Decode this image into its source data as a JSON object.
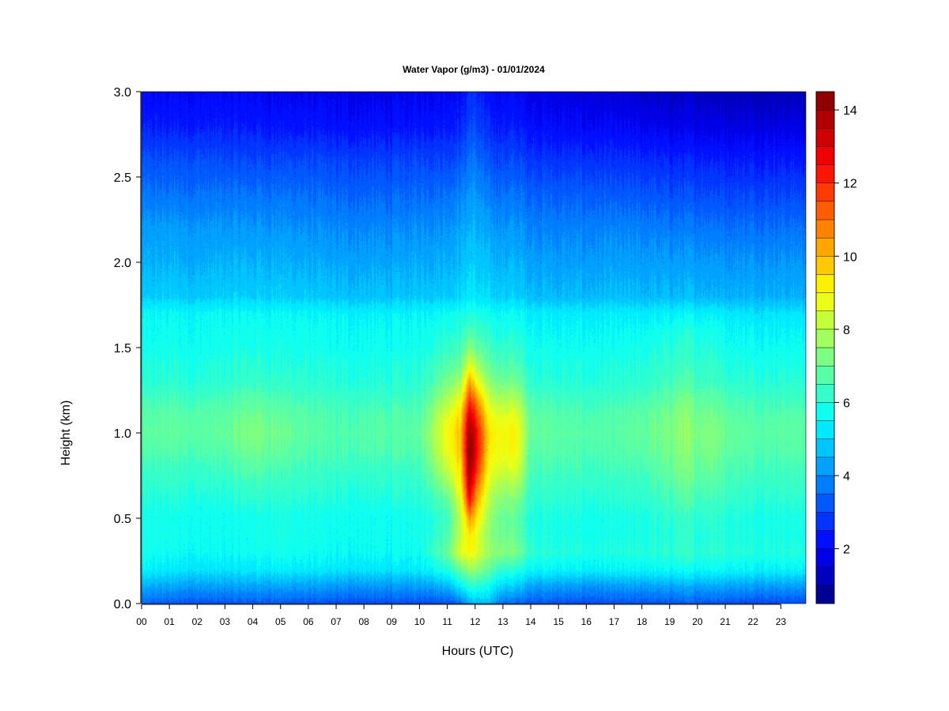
{
  "chart_data": {
    "type": "heatmap",
    "title": "Water Vapor (g/m3) - 01/01/2024",
    "xlabel": "Hours (UTC)",
    "ylabel": "Height (km)",
    "xlim": [
      0,
      23.9
    ],
    "ylim": [
      0.0,
      3.0
    ],
    "x_tick_labels": [
      "00",
      "01",
      "02",
      "03",
      "04",
      "05",
      "06",
      "07",
      "08",
      "09",
      "10",
      "11",
      "12",
      "13",
      "14",
      "15",
      "16",
      "17",
      "18",
      "19",
      "20",
      "21",
      "22",
      "23"
    ],
    "x_tick_values": [
      0,
      1,
      2,
      3,
      4,
      5,
      6,
      7,
      8,
      9,
      10,
      11,
      12,
      13,
      14,
      15,
      16,
      17,
      18,
      19,
      20,
      21,
      22,
      23
    ],
    "y_tick_labels": [
      "0.0",
      "0.5",
      "1.0",
      "1.5",
      "2.0",
      "2.5",
      "3.0"
    ],
    "y_tick_values": [
      0.0,
      0.5,
      1.0,
      1.5,
      2.0,
      2.5,
      3.0
    ],
    "colorbar": {
      "range": [
        0.5,
        14.5
      ],
      "level_step": 0.5,
      "tick_labels": [
        "2",
        "4",
        "6",
        "8",
        "10",
        "12",
        "14"
      ],
      "tick_values": [
        2,
        4,
        6,
        8,
        10,
        12,
        14
      ]
    },
    "height_km": [
      0.0,
      0.1,
      0.2,
      0.3,
      0.4,
      0.5,
      0.6,
      0.7,
      0.8,
      0.9,
      1.0,
      1.1,
      1.2,
      1.3,
      1.4,
      1.5,
      1.6,
      1.7,
      1.8,
      2.0,
      2.2,
      2.4,
      2.6,
      2.8,
      3.0
    ],
    "hours_utc": [
      0,
      1,
      2,
      3,
      4,
      5,
      6,
      7,
      8,
      9,
      10,
      11,
      11.5,
      11.8,
      12,
      12.5,
      13,
      13.5,
      14,
      15,
      16,
      17,
      18,
      19,
      19.5,
      20,
      20.5,
      21,
      22,
      23,
      23.9
    ],
    "values_g_m3": [
      [
        3.4,
        4.4,
        5.4,
        5.8,
        5.8,
        5.8,
        5.9,
        6.1,
        6.3,
        6.6,
        6.8,
        6.7,
        6.4,
        6.0,
        5.9,
        5.7,
        5.6,
        5.5,
        4.8,
        4.4,
        4.1,
        3.6,
        3.1,
        2.4,
        2.0
      ],
      [
        3.3,
        4.3,
        5.3,
        5.7,
        5.8,
        5.8,
        6.0,
        6.2,
        6.4,
        6.7,
        6.9,
        6.8,
        6.5,
        6.1,
        6.0,
        5.8,
        5.7,
        5.6,
        4.9,
        4.5,
        4.2,
        3.6,
        3.1,
        2.4,
        2.0
      ],
      [
        3.2,
        4.2,
        5.2,
        5.6,
        5.7,
        5.7,
        5.9,
        6.1,
        6.3,
        6.6,
        6.8,
        6.7,
        6.4,
        6.0,
        5.9,
        5.7,
        5.6,
        5.5,
        4.8,
        4.4,
        4.1,
        3.6,
        3.1,
        2.4,
        2.0
      ],
      [
        3.2,
        4.2,
        5.2,
        5.6,
        5.7,
        5.7,
        5.9,
        6.1,
        6.4,
        6.7,
        6.9,
        6.8,
        6.5,
        6.1,
        6.0,
        5.8,
        5.7,
        5.6,
        4.9,
        4.5,
        4.1,
        3.6,
        3.0,
        2.4,
        2.0
      ],
      [
        3.3,
        4.3,
        5.3,
        5.7,
        5.8,
        5.8,
        6.1,
        6.4,
        6.8,
        7.1,
        7.3,
        7.1,
        6.8,
        6.3,
        6.1,
        5.9,
        5.8,
        5.6,
        4.9,
        4.5,
        4.1,
        3.6,
        3.0,
        2.4,
        2.0
      ],
      [
        3.3,
        4.3,
        5.4,
        5.8,
        5.9,
        5.9,
        6.1,
        6.3,
        6.6,
        6.9,
        7.1,
        6.9,
        6.6,
        6.2,
        6.0,
        5.9,
        5.7,
        5.6,
        4.9,
        4.5,
        4.1,
        3.6,
        3.0,
        2.3,
        1.9
      ],
      [
        3.2,
        4.2,
        5.3,
        5.7,
        5.8,
        5.8,
        6.0,
        6.2,
        6.4,
        6.6,
        6.8,
        6.7,
        6.4,
        6.1,
        6.0,
        5.8,
        5.7,
        5.5,
        4.8,
        4.4,
        4.0,
        3.5,
        3.0,
        2.3,
        1.9
      ],
      [
        3.1,
        4.1,
        5.2,
        5.6,
        5.7,
        5.7,
        5.9,
        6.1,
        6.3,
        6.5,
        6.6,
        6.5,
        6.3,
        6.0,
        5.9,
        5.7,
        5.6,
        5.4,
        4.7,
        4.3,
        3.9,
        3.4,
        2.9,
        2.2,
        1.8
      ],
      [
        3.1,
        4.1,
        5.2,
        5.6,
        5.7,
        5.7,
        5.9,
        6.1,
        6.3,
        6.6,
        6.7,
        6.6,
        6.3,
        6.0,
        5.9,
        5.7,
        5.6,
        5.4,
        4.7,
        4.3,
        3.9,
        3.4,
        2.9,
        2.2,
        1.8
      ],
      [
        3.1,
        4.1,
        5.2,
        5.6,
        5.7,
        5.7,
        5.9,
        6.1,
        6.3,
        6.6,
        6.7,
        6.6,
        6.3,
        6.0,
        5.9,
        5.7,
        5.6,
        5.4,
        4.7,
        4.3,
        3.9,
        3.4,
        2.9,
        2.2,
        1.8
      ],
      [
        3.1,
        4.2,
        5.3,
        5.7,
        5.8,
        5.8,
        6.0,
        6.2,
        6.4,
        6.7,
        6.8,
        6.7,
        6.4,
        6.1,
        6.0,
        5.8,
        5.7,
        5.5,
        4.8,
        4.4,
        4.0,
        3.5,
        3.0,
        2.3,
        1.9
      ],
      [
        3.2,
        4.6,
        6.0,
        7.0,
        6.6,
        6.4,
        6.8,
        7.6,
        8.3,
        8.8,
        9.0,
        8.6,
        7.9,
        7.2,
        6.7,
        6.3,
        6.0,
        5.7,
        4.9,
        4.5,
        4.1,
        3.6,
        3.0,
        2.4,
        2.0
      ],
      [
        3.6,
        5.4,
        7.0,
        8.6,
        8.2,
        8.2,
        8.6,
        9.2,
        9.6,
        9.9,
        10.0,
        9.6,
        8.8,
        7.8,
        7.0,
        6.5,
        6.1,
        5.8,
        5.0,
        4.6,
        4.3,
        3.8,
        3.2,
        2.5,
        2.1
      ],
      [
        4.4,
        6.0,
        7.6,
        9.0,
        9.4,
        10.5,
        12.5,
        13.6,
        14.3,
        14.5,
        14.2,
        13.3,
        11.8,
        10.3,
        8.7,
        7.4,
        6.6,
        6.0,
        5.3,
        4.9,
        4.5,
        4.1,
        3.6,
        3.0,
        2.6
      ],
      [
        4.6,
        6.1,
        7.5,
        8.8,
        8.9,
        9.6,
        10.6,
        11.6,
        12.6,
        13.2,
        13.0,
        12.1,
        10.8,
        9.2,
        8.0,
        7.0,
        6.4,
        5.9,
        5.2,
        4.8,
        4.5,
        4.1,
        3.6,
        3.0,
        2.6
      ],
      [
        4.6,
        5.6,
        6.8,
        7.6,
        7.4,
        7.6,
        7.9,
        8.4,
        8.9,
        9.2,
        9.3,
        8.9,
        8.2,
        7.4,
        6.8,
        6.4,
        6.0,
        5.7,
        5.0,
        4.6,
        4.2,
        3.7,
        3.1,
        2.5,
        2.1
      ],
      [
        3.6,
        5.0,
        6.2,
        7.4,
        7.1,
        7.0,
        7.3,
        7.9,
        8.5,
        8.9,
        9.0,
        8.6,
        7.9,
        7.1,
        6.6,
        6.2,
        5.9,
        5.6,
        4.9,
        4.5,
        4.1,
        3.6,
        3.0,
        2.4,
        2.0
      ],
      [
        3.4,
        4.8,
        6.0,
        7.2,
        6.9,
        6.8,
        7.2,
        7.9,
        8.6,
        9.0,
        9.1,
        8.7,
        7.9,
        7.1,
        6.6,
        6.2,
        5.9,
        5.6,
        4.9,
        4.5,
        4.1,
        3.6,
        3.0,
        2.4,
        2.0
      ],
      [
        3.3,
        4.3,
        5.6,
        6.2,
        6.0,
        6.0,
        6.2,
        6.4,
        6.6,
        6.8,
        7.0,
        6.9,
        6.6,
        6.2,
        6.0,
        5.8,
        5.6,
        5.4,
        4.7,
        4.3,
        3.9,
        3.4,
        2.8,
        2.2,
        1.8
      ],
      [
        3.2,
        4.2,
        5.5,
        6.0,
        5.9,
        5.9,
        6.1,
        6.3,
        6.5,
        6.7,
        6.8,
        6.7,
        6.4,
        6.0,
        5.9,
        5.7,
        5.5,
        5.3,
        4.6,
        4.2,
        3.8,
        3.3,
        2.7,
        2.1,
        1.7
      ],
      [
        3.1,
        4.1,
        5.4,
        5.9,
        5.8,
        5.8,
        6.0,
        6.2,
        6.4,
        6.6,
        6.7,
        6.6,
        6.3,
        6.0,
        5.9,
        5.7,
        5.5,
        5.3,
        4.6,
        4.2,
        3.8,
        3.3,
        2.7,
        2.0,
        1.6
      ],
      [
        3.1,
        4.1,
        5.4,
        5.9,
        5.8,
        5.8,
        6.0,
        6.2,
        6.4,
        6.6,
        6.7,
        6.6,
        6.3,
        6.0,
        5.9,
        5.7,
        5.5,
        5.3,
        4.6,
        4.2,
        3.8,
        3.2,
        2.6,
        2.0,
        1.5
      ],
      [
        3.2,
        4.2,
        5.5,
        6.0,
        5.9,
        5.9,
        6.1,
        6.3,
        6.5,
        6.8,
        6.9,
        6.8,
        6.5,
        6.1,
        6.0,
        5.8,
        5.6,
        5.3,
        4.6,
        4.2,
        3.8,
        3.2,
        2.6,
        1.9,
        1.4
      ],
      [
        3.2,
        4.3,
        5.6,
        6.1,
        6.0,
        6.1,
        6.4,
        6.7,
        6.9,
        7.1,
        7.2,
        7.1,
        6.8,
        6.4,
        6.2,
        6.0,
        5.8,
        5.4,
        4.6,
        4.2,
        3.7,
        3.1,
        2.5,
        1.8,
        1.3
      ],
      [
        3.3,
        4.4,
        5.7,
        6.3,
        6.2,
        6.3,
        6.7,
        7.0,
        7.3,
        7.5,
        7.6,
        7.5,
        7.2,
        6.7,
        6.4,
        6.2,
        6.0,
        5.5,
        4.6,
        4.2,
        3.7,
        3.1,
        2.5,
        1.8,
        1.3
      ],
      [
        3.3,
        4.3,
        5.6,
        6.1,
        6.0,
        6.1,
        6.4,
        6.7,
        6.9,
        7.1,
        7.2,
        7.1,
        6.8,
        6.4,
        6.2,
        6.0,
        5.8,
        5.4,
        4.6,
        4.2,
        3.7,
        3.1,
        2.5,
        1.8,
        1.3
      ],
      [
        3.3,
        4.4,
        5.7,
        6.2,
        6.1,
        6.2,
        6.5,
        6.8,
        7.1,
        7.3,
        7.4,
        7.2,
        6.9,
        6.5,
        6.3,
        6.1,
        5.9,
        5.5,
        4.6,
        4.2,
        3.7,
        3.1,
        2.5,
        1.8,
        1.3
      ],
      [
        3.2,
        4.3,
        5.6,
        6.1,
        6.0,
        6.0,
        6.3,
        6.5,
        6.7,
        6.9,
        7.0,
        6.9,
        6.6,
        6.2,
        6.0,
        5.8,
        5.6,
        5.3,
        4.5,
        4.1,
        3.6,
        3.0,
        2.4,
        1.7,
        1.2
      ],
      [
        3.1,
        4.2,
        5.5,
        6.0,
        5.9,
        5.9,
        6.1,
        6.3,
        6.5,
        6.7,
        6.8,
        6.7,
        6.4,
        6.1,
        5.9,
        5.7,
        5.5,
        5.2,
        4.5,
        4.1,
        3.6,
        3.0,
        2.4,
        1.7,
        1.2
      ],
      [
        3.1,
        4.2,
        5.5,
        6.0,
        5.9,
        5.9,
        6.1,
        6.3,
        6.5,
        6.7,
        6.8,
        6.7,
        6.4,
        6.1,
        5.9,
        5.7,
        5.5,
        5.2,
        4.5,
        4.1,
        3.6,
        3.0,
        2.4,
        1.7,
        1.2
      ],
      [
        3.1,
        4.2,
        5.5,
        6.0,
        5.9,
        5.9,
        6.1,
        6.3,
        6.5,
        6.7,
        6.8,
        6.7,
        6.4,
        6.1,
        5.9,
        5.7,
        5.5,
        5.2,
        4.5,
        4.1,
        3.6,
        3.0,
        2.4,
        1.7,
        1.2
      ]
    ]
  }
}
